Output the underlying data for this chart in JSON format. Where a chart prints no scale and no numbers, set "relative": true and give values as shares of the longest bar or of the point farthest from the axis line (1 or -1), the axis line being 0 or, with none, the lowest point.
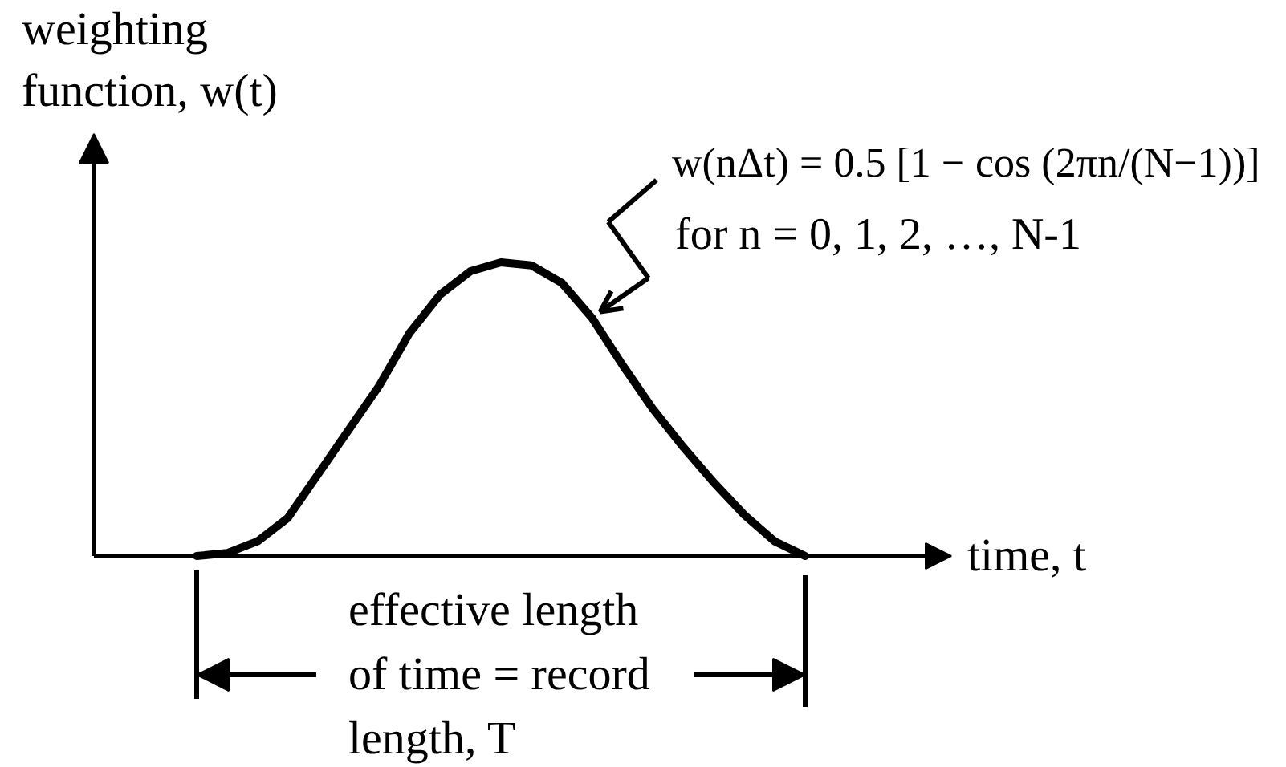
{
  "chart_data": {
    "type": "line",
    "relative": true,
    "color": "#000000",
    "xlabel": "time, t",
    "ylabel": "weighting function, w(t)",
    "categories": [
      null,
      null,
      null,
      null,
      null,
      null,
      null,
      null,
      null,
      null,
      null,
      null,
      null,
      null,
      null,
      null,
      null,
      null,
      null,
      null,
      null
    ],
    "values": [
      0,
      0.01,
      0.05,
      0.13,
      0.28,
      0.43,
      0.58,
      0.76,
      0.89,
      0.97,
      1,
      0.99,
      0.93,
      0.81,
      0.65,
      0.5,
      0.37,
      0.25,
      0.14,
      0.05,
      0
    ],
    "annotations": [
      "w(nΔt) = 0.5 [1 − cos (2πn/(N−1))]",
      "for n = 0, 1, 2, …, N-1",
      "effective length of time = record length, T"
    ]
  }
}
